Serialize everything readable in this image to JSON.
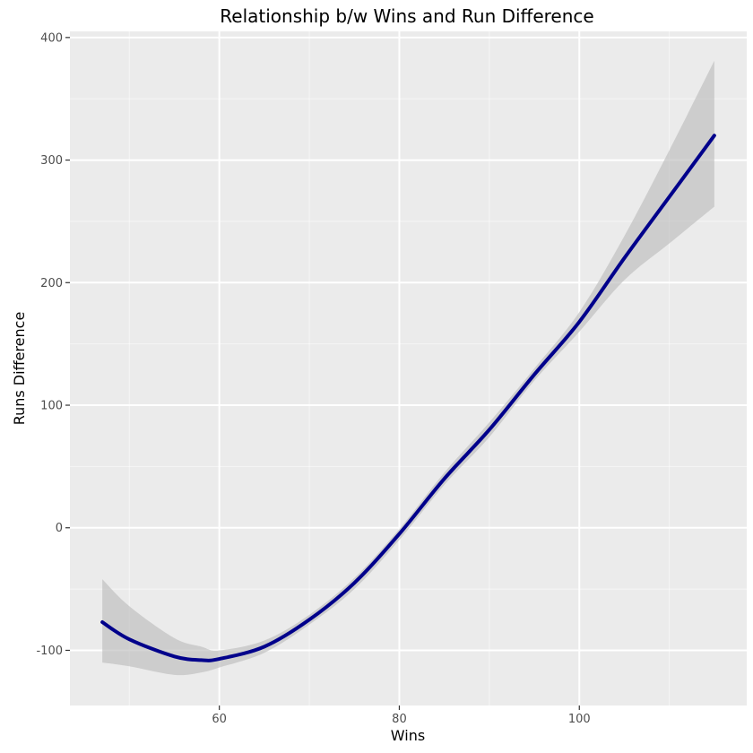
{
  "chart_data": {
    "type": "line",
    "title": "Relationship b/w Wins and Run Difference",
    "xlabel": "Wins",
    "ylabel": "Runs Difference",
    "xlim": [
      43.4,
      118.6
    ],
    "ylim": [
      -145,
      405
    ],
    "x_ticks": [
      60,
      80,
      100
    ],
    "x_tick_labels": [
      "60",
      "80",
      "100"
    ],
    "x_minor_ticks": [
      50,
      70,
      90,
      110
    ],
    "y_ticks": [
      -100,
      0,
      100,
      200,
      300,
      400
    ],
    "y_tick_labels": [
      "-100",
      "0",
      "100",
      "200",
      "300",
      "400"
    ],
    "y_minor_ticks": [
      -50,
      50,
      150,
      250,
      350
    ],
    "grid": true,
    "series": [
      {
        "color": "#00008b",
        "x": [
          47,
          50,
          55,
          58,
          60,
          65,
          70,
          75,
          80,
          85,
          90,
          95,
          100,
          105,
          110,
          115
        ],
        "y": [
          -77,
          -91,
          -105,
          -108,
          -107,
          -97,
          -75,
          -45,
          -5,
          40,
          80,
          125,
          168,
          220,
          270,
          320
        ],
        "ci_lower": [
          -110,
          -113,
          -120,
          -118,
          -114,
          -102,
          -79,
          -50,
          -10,
          35,
          74,
          120,
          160,
          202,
          232,
          262
        ],
        "ci_upper": [
          -42,
          -64,
          -90,
          -97,
          -100,
          -92,
          -71,
          -41,
          -1,
          45,
          86,
          130,
          176,
          238,
          308,
          381
        ]
      }
    ],
    "colors": {
      "panel_background": "#ebebeb",
      "grid_major": "#ffffff",
      "ribbon": "#bdbdbd",
      "line": "#00008b"
    }
  }
}
